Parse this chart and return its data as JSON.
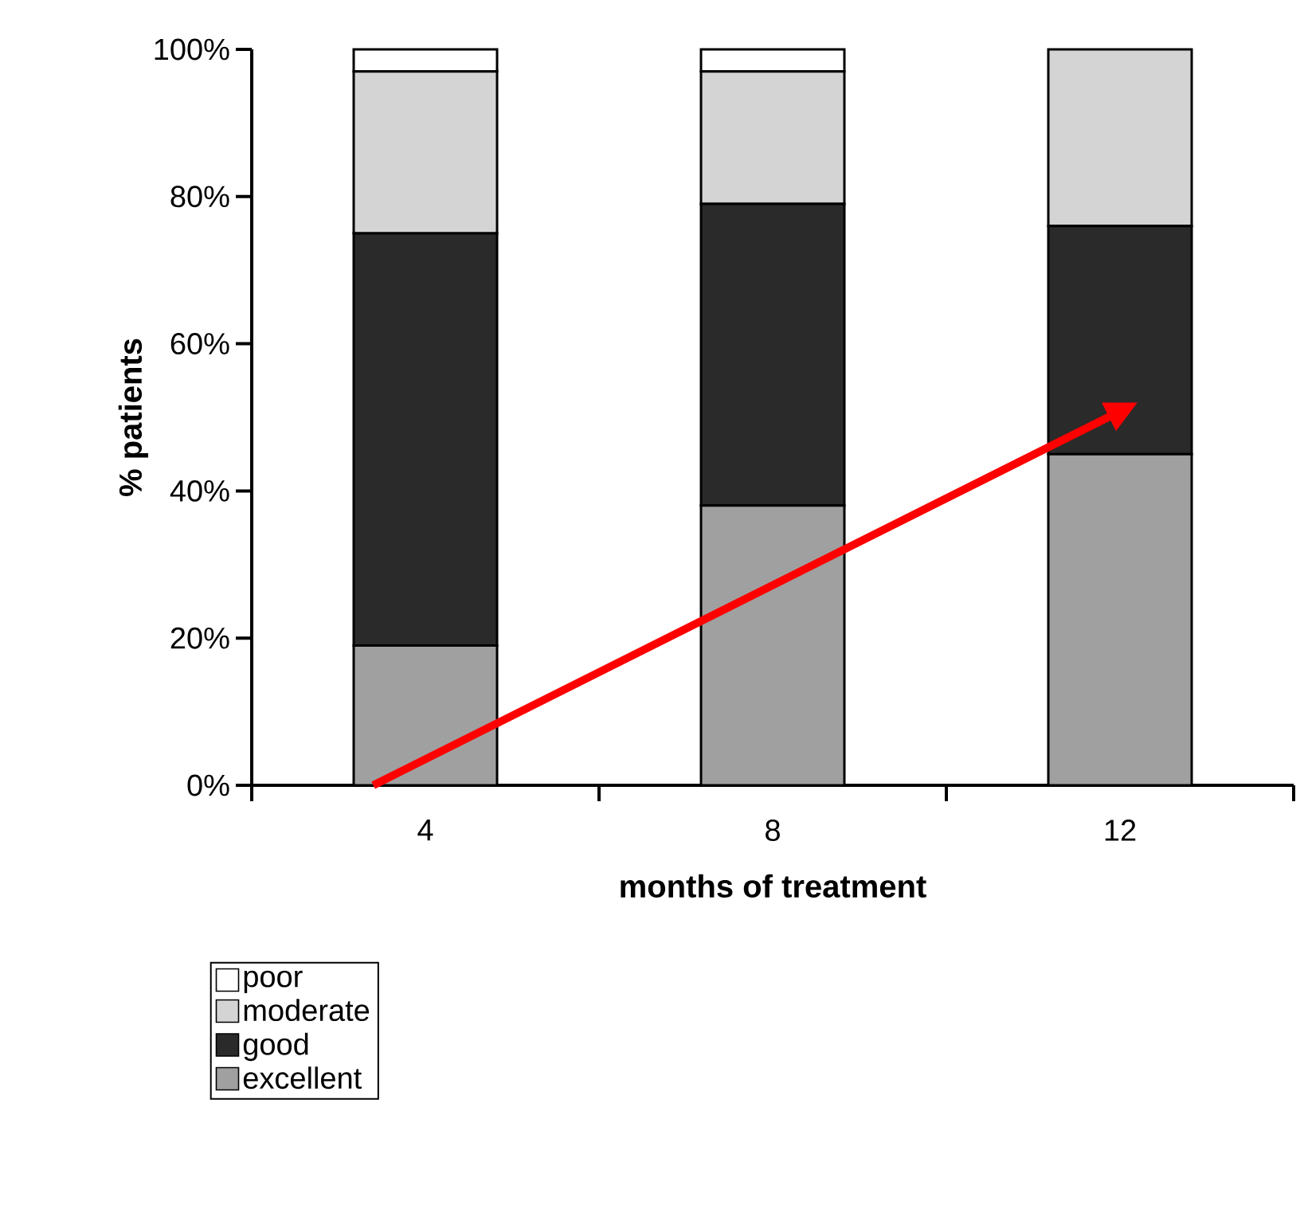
{
  "chart_data": {
    "type": "bar",
    "stacked": true,
    "xlabel": "months of treatment",
    "ylabel": "% patients",
    "categories": [
      "4",
      "8",
      "12"
    ],
    "series": [
      {
        "name": "excellent",
        "color": "#a0a0a0",
        "values": [
          19,
          38,
          45
        ]
      },
      {
        "name": "good",
        "color": "#2a2a2a",
        "values": [
          56,
          41,
          31
        ]
      },
      {
        "name": "moderate",
        "color": "#d4d4d4",
        "values": [
          22,
          18,
          24
        ]
      },
      {
        "name": "poor",
        "color": "#ffffff",
        "values": [
          3,
          3,
          0
        ]
      }
    ],
    "ylim": [
      0,
      100
    ],
    "yticks": [
      {
        "value": 0,
        "label": "0%"
      },
      {
        "value": 20,
        "label": "20%"
      },
      {
        "value": 40,
        "label": "40%"
      },
      {
        "value": 60,
        "label": "60%"
      },
      {
        "value": 80,
        "label": "80%"
      },
      {
        "value": 100,
        "label": "100%"
      }
    ],
    "legend": "bottom left",
    "grid": false
  }
}
